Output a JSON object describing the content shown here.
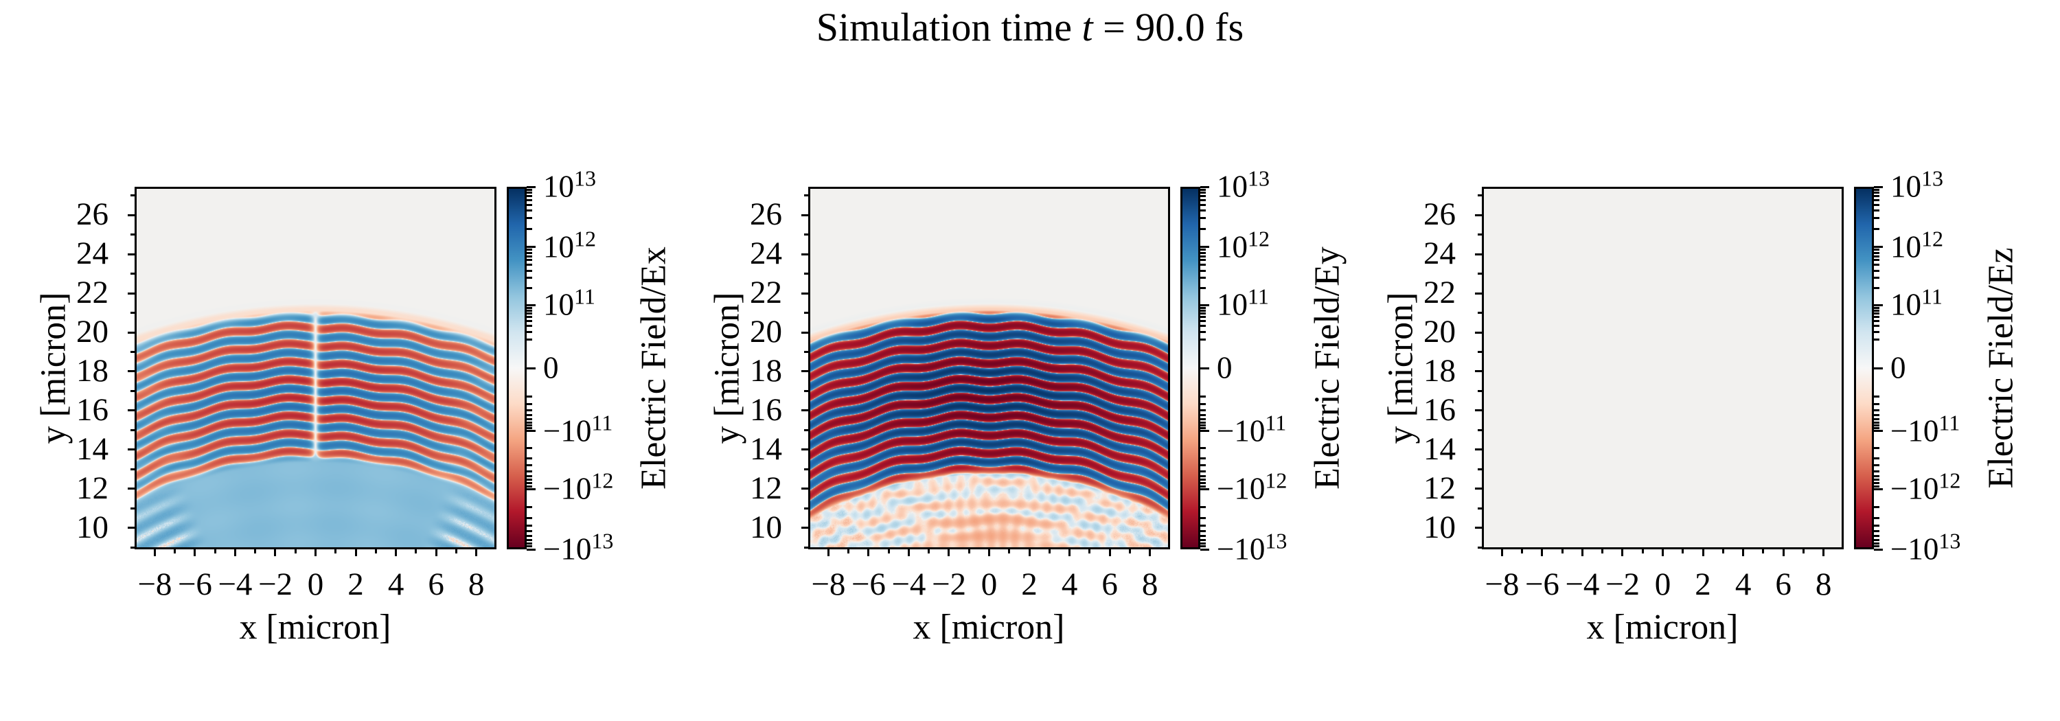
{
  "figure": {
    "title_prefix": "Simulation time ",
    "title_var": "t",
    "title_suffix": " = 90.0 fs",
    "background": "#ffffff"
  },
  "axes": {
    "xlabel": "x [micron]",
    "ylabel": "y [micron]",
    "x_range": [
      -8.9,
      8.9
    ],
    "y_range": [
      9.0,
      27.35
    ],
    "x_major_ticks": [
      -8,
      -6,
      -4,
      -2,
      0,
      2,
      4,
      6,
      8
    ],
    "x_tick_labels": [
      "−8",
      "−6",
      "−4",
      "−2",
      "0",
      "2",
      "4",
      "6",
      "8"
    ],
    "x_minor_ticks": [
      -7,
      -5,
      -3,
      -1,
      1,
      3,
      5,
      7
    ],
    "y_major_ticks": [
      10,
      12,
      14,
      16,
      18,
      20,
      22,
      24,
      26
    ],
    "y_tick_labels": [
      "10",
      "12",
      "14",
      "16",
      "18",
      "20",
      "22",
      "24",
      "26"
    ],
    "y_minor_ticks": [
      9,
      11,
      13,
      15,
      17,
      19,
      21,
      23,
      25,
      27
    ]
  },
  "colorbar": {
    "scale": "symlog",
    "vmin": -10000000000000.0,
    "vmax": 10000000000000.0,
    "linthresh": 10000000000.0,
    "tick_labels": [
      {
        "sign": "",
        "base": "10",
        "exp": "13"
      },
      {
        "sign": "",
        "base": "10",
        "exp": "12"
      },
      {
        "sign": "",
        "base": "10",
        "exp": "11"
      },
      {
        "sign": "",
        "base": "0",
        "exp": ""
      },
      {
        "sign": "−",
        "base": "10",
        "exp": "11"
      },
      {
        "sign": "−",
        "base": "10",
        "exp": "12"
      },
      {
        "sign": "−",
        "base": "10",
        "exp": "13"
      }
    ],
    "colormap_stops_neg_to_pos": [
      "#67001f",
      "#b2182b",
      "#d6604d",
      "#f4a582",
      "#fddbc7",
      "#f2f1ef",
      "#d1e5f0",
      "#92c5de",
      "#4393c3",
      "#2166ac",
      "#053061"
    ]
  },
  "panels": [
    {
      "field": "Ex",
      "colorbar_label": "Electric Field/Ex"
    },
    {
      "field": "Ey",
      "colorbar_label": "Electric Field/Ey"
    },
    {
      "field": "Ez",
      "colorbar_label": "Electric Field/Ez"
    }
  ],
  "chart_data": {
    "type": "heatmap",
    "title": "Simulation time t = 90.0 fs",
    "subplot_grid": {
      "rows": 1,
      "cols": 3
    },
    "x": {
      "label": "x [micron]",
      "range": [
        -8.9,
        8.9
      ],
      "major_ticks": [
        -8,
        -6,
        -4,
        -2,
        0,
        2,
        4,
        6,
        8
      ]
    },
    "y": {
      "label": "y [micron]",
      "range": [
        9.0,
        27.35
      ],
      "major_ticks": [
        10,
        12,
        14,
        16,
        18,
        20,
        22,
        24,
        26
      ]
    },
    "color_scale": {
      "type": "symlog",
      "vmin": -10000000000000.0,
      "vmax": 10000000000000.0,
      "linthresh": 10000000000.0,
      "colormap": "RdBu",
      "positive_color": "blue",
      "negative_color": "red",
      "zero_color": "#f2f1ef",
      "major_ticks": [
        10000000000000.0,
        1000000000000.0,
        100000000000.0,
        0,
        -100000000000.0,
        -1000000000000.0,
        -10000000000000.0
      ]
    },
    "wave_model": {
      "focus_xy": [
        0,
        -5.5
      ],
      "wavelength_micron": 0.92,
      "phase_ref_radius": 25.82,
      "outer_radius": 26.0,
      "packet_top_y_at_axis": 20.4,
      "packet_bottom_y_at_axis": 13.0
    },
    "subplots": [
      {
        "field": "Ex",
        "colorbar_label": "Electric Field/Ex",
        "peak_V_per_m": 1900000000000.0,
        "inner_radius": 18.8,
        "null_width_micron": 0.28,
        "x_phase_shift_rad": 0.8,
        "bowl_amplitude": 230000000000.0,
        "features": "arc-shaped wave packet of alternating red/blue half-wave bands, narrow white null channel along x=0 with slight phase jump, smooth light-blue bowl below the packet with faint radial spokes, speckled arc fragments near the lower left/right corners"
      },
      {
        "field": "Ey",
        "colorbar_label": "Electric Field/Ey",
        "peak_V_per_m": 9000000000000.0,
        "inner_radius": 18.2,
        "features": "strong saturated arc wave packet (dark red / dark blue bands separated by thin white zero crossings), amplitude maximal on axis, faint pale mottled crosshatch texture below, pale orange patch near bottom center, faint red arcs near lower corners"
      },
      {
        "field": "Ez",
        "colorbar_label": "Electric Field/Ez",
        "peak_V_per_m": 0,
        "features": "uniformly zero field, flat light-gray panel"
      }
    ]
  }
}
